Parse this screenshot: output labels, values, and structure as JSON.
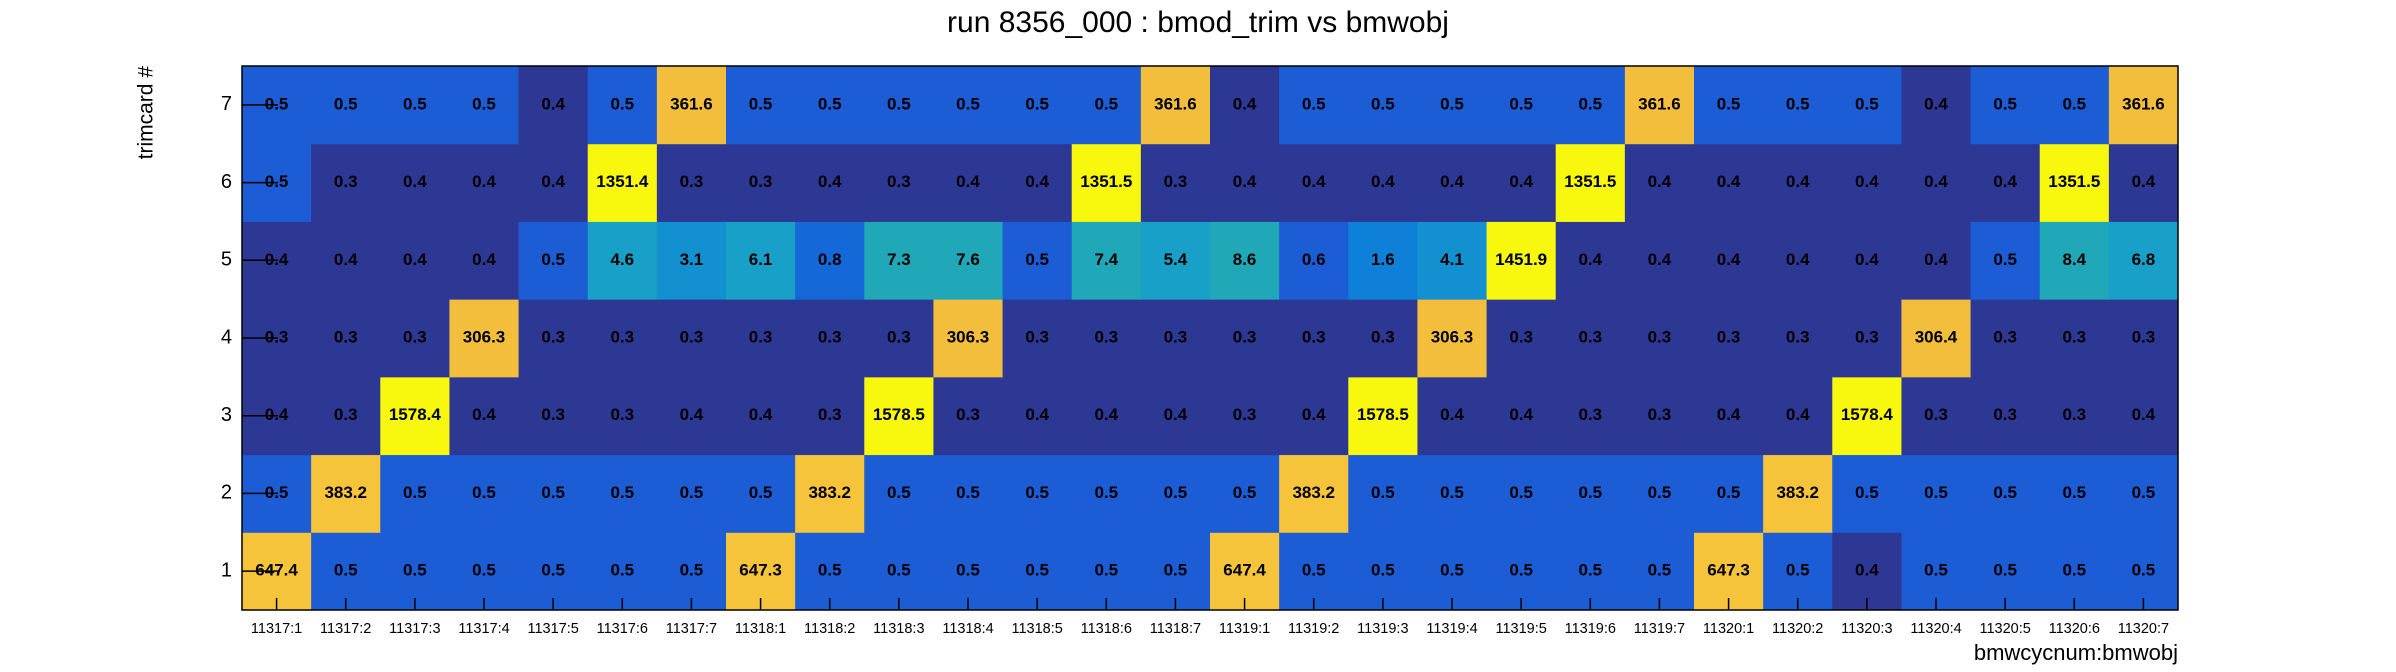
{
  "chart_data": {
    "type": "heatmap",
    "title": "run 8356_000 : bmod_trim vs bmwobj",
    "x_label": "bmwcycnum:bmwobj",
    "y_label": "trimcard #",
    "x_categories": [
      "11317:1",
      "11317:2",
      "11317:3",
      "11317:4",
      "11317:5",
      "11317:6",
      "11317:7",
      "11318:1",
      "11318:2",
      "11318:3",
      "11318:4",
      "11318:5",
      "11318:6",
      "11318:7",
      "11319:1",
      "11319:2",
      "11319:3",
      "11319:4",
      "11319:5",
      "11319:6",
      "11319:7",
      "11320:1",
      "11320:2",
      "11320:3",
      "11320:4",
      "11320:5",
      "11320:6",
      "11320:7"
    ],
    "y_categories": [
      "1",
      "2",
      "3",
      "4",
      "5",
      "6",
      "7"
    ],
    "values": [
      [
        647.4,
        0.5,
        0.5,
        0.5,
        0.5,
        0.5,
        0.5,
        647.3,
        0.5,
        0.5,
        0.5,
        0.5,
        0.5,
        0.5,
        647.4,
        0.5,
        0.5,
        0.5,
        0.5,
        0.5,
        0.5,
        647.3,
        0.5,
        0.4,
        0.5,
        0.5,
        0.5,
        0.5
      ],
      [
        0.5,
        383.2,
        0.5,
        0.5,
        0.5,
        0.5,
        0.5,
        0.5,
        383.2,
        0.5,
        0.5,
        0.5,
        0.5,
        0.5,
        0.5,
        383.2,
        0.5,
        0.5,
        0.5,
        0.5,
        0.5,
        0.5,
        383.2,
        0.5,
        0.5,
        0.5,
        0.5,
        0.5
      ],
      [
        0.4,
        0.3,
        1578.4,
        0.4,
        0.3,
        0.3,
        0.4,
        0.4,
        0.3,
        1578.5,
        0.3,
        0.4,
        0.4,
        0.4,
        0.3,
        0.4,
        1578.5,
        0.4,
        0.4,
        0.3,
        0.3,
        0.4,
        0.4,
        1578.4,
        0.3,
        0.3,
        0.3,
        0.4
      ],
      [
        0.3,
        0.3,
        0.3,
        306.3,
        0.3,
        0.3,
        0.3,
        0.3,
        0.3,
        0.3,
        306.3,
        0.3,
        0.3,
        0.3,
        0.3,
        0.3,
        0.3,
        306.3,
        0.3,
        0.3,
        0.3,
        0.3,
        0.3,
        0.3,
        306.4,
        0.3,
        0.3,
        0.3
      ],
      [
        0.4,
        0.4,
        0.4,
        0.4,
        0.5,
        4.6,
        3.1,
        6.1,
        0.8,
        7.3,
        7.6,
        0.5,
        7.4,
        5.4,
        8.6,
        0.6,
        1.6,
        4.1,
        1451.9,
        0.4,
        0.4,
        0.4,
        0.4,
        0.4,
        0.4,
        0.5,
        8.4,
        6.8
      ],
      [
        0.5,
        0.3,
        0.4,
        0.4,
        0.4,
        1351.4,
        0.3,
        0.3,
        0.4,
        0.3,
        0.4,
        0.4,
        1351.5,
        0.3,
        0.4,
        0.4,
        0.4,
        0.4,
        0.4,
        1351.5,
        0.4,
        0.4,
        0.4,
        0.4,
        0.4,
        0.4,
        1351.5,
        0.4
      ],
      [
        0.5,
        0.5,
        0.5,
        0.5,
        0.4,
        0.5,
        361.6,
        0.5,
        0.5,
        0.5,
        0.5,
        0.5,
        0.5,
        361.6,
        0.4,
        0.5,
        0.5,
        0.5,
        0.5,
        0.5,
        361.6,
        0.5,
        0.5,
        0.5,
        0.4,
        0.5,
        0.5,
        361.6
      ]
    ],
    "zlog": true,
    "zlim": [
      0.25,
      2000
    ],
    "palette": [
      "#2d3894",
      "#1c5cd4",
      "#1468d8",
      "#0f80d8",
      "#1290d0",
      "#18a0c8",
      "#20a8b8",
      "#40b0a0",
      "#70b880",
      "#a0bc60",
      "#d0bc48",
      "#e8bc40",
      "#f2be3c",
      "#f6c43a",
      "#fde030",
      "#f8f80e"
    ]
  }
}
